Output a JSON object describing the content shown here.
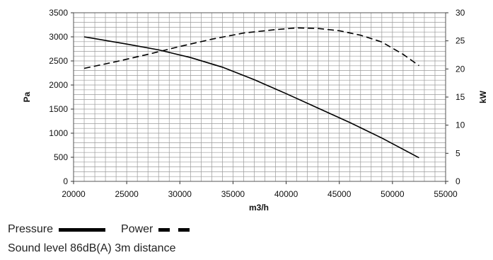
{
  "chart_data": {
    "type": "line",
    "xlabel": "m3/h",
    "ylabel": "Pa",
    "y2label": "kW",
    "xlim": [
      20000,
      55000
    ],
    "ylim": [
      0,
      3500
    ],
    "y2lim": [
      0,
      30
    ],
    "x_ticks": [
      20000,
      25000,
      30000,
      35000,
      40000,
      45000,
      50000,
      55000
    ],
    "y_ticks": [
      0,
      500,
      1000,
      1500,
      2000,
      2500,
      3000,
      3500
    ],
    "y2_ticks": [
      0,
      5,
      10,
      15,
      20,
      25,
      30
    ],
    "grid": true,
    "series": [
      {
        "name": "Pressure",
        "axis": "left",
        "style": "solid",
        "x": [
          21000,
          25000,
          28000,
          31000,
          34000,
          37000,
          40000,
          43000,
          46000,
          49000,
          52500
        ],
        "y": [
          3000,
          2850,
          2730,
          2570,
          2370,
          2110,
          1820,
          1520,
          1220,
          900,
          490
        ]
      },
      {
        "name": "Power",
        "axis": "right",
        "style": "dashed",
        "x": [
          21000,
          24000,
          27000,
          30000,
          33000,
          36000,
          39000,
          41000,
          43000,
          45000,
          47000,
          49000,
          51000,
          52500
        ],
        "y": [
          20.1,
          21.3,
          22.6,
          24.0,
          25.3,
          26.4,
          27.0,
          27.3,
          27.2,
          26.8,
          26.0,
          24.8,
          22.6,
          20.6
        ]
      }
    ]
  },
  "legend": {
    "pressure_label": "Pressure",
    "power_label": "Power"
  },
  "note": "Sound level 86dB(A) 3m distance",
  "colors": {
    "line": "#000000",
    "grid": "#9a9a9a"
  }
}
